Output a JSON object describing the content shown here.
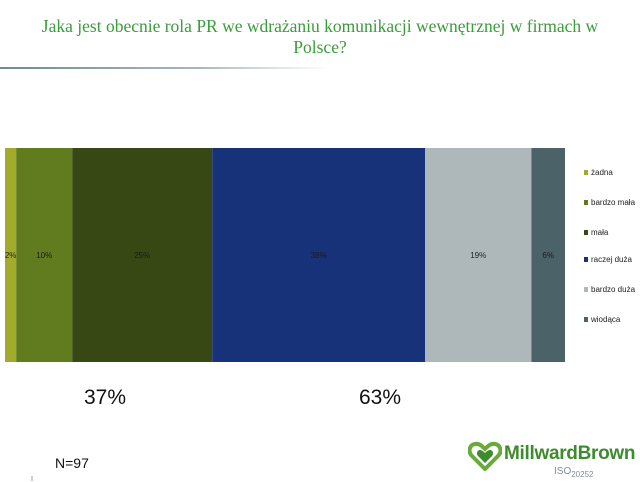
{
  "title": "Jaka jest obecnie rola PR we wdrażaniu komunikacji wewnętrznej w firmach w Polsce?",
  "chart_data": {
    "type": "bar",
    "orientation": "horizontal-stacked-100",
    "unit": "%",
    "series": [
      {
        "name": "żadna",
        "value": 2,
        "label": "2%",
        "color": "#a3ab2a"
      },
      {
        "name": "bardzo mała",
        "value": 10,
        "label": "10%",
        "color": "#617b1f"
      },
      {
        "name": "mała",
        "value": 25,
        "label": "25%",
        "color": "#374815"
      },
      {
        "name": "raczej duża",
        "value": 38,
        "label": "38%",
        "color": "#183279"
      },
      {
        "name": "bardzo duża",
        "value": 19,
        "label": "19%",
        "color": "#aeb8bb"
      },
      {
        "name": "wiodąca",
        "value": 6,
        "label": "6%",
        "color": "#4b6269"
      }
    ],
    "groups": [
      {
        "label": "37%"
      },
      {
        "label": "63%"
      }
    ],
    "legend_position": "right"
  },
  "footnote": "N=97",
  "logo": {
    "text": "MillwardBrown",
    "iso": "ISO",
    "iso_number": "20252"
  }
}
